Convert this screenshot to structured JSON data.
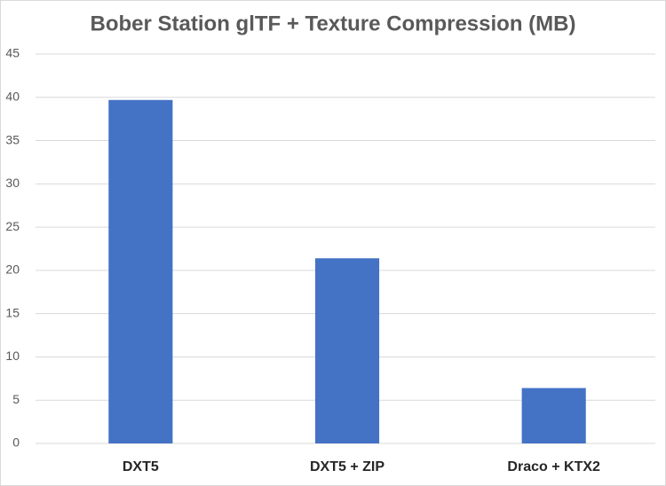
{
  "chart_data": {
    "type": "bar",
    "title": "Bober Station glTF + Texture Compression (MB)",
    "categories": [
      "DXT5",
      "DXT5 + ZIP",
      "Draco + KTX2"
    ],
    "values": [
      39.7,
      21.4,
      6.4
    ],
    "color": "#4472c4",
    "ylim": [
      0,
      45
    ],
    "yticks": [
      0,
      5,
      10,
      15,
      20,
      25,
      30,
      35,
      40,
      45
    ],
    "grid": true
  }
}
